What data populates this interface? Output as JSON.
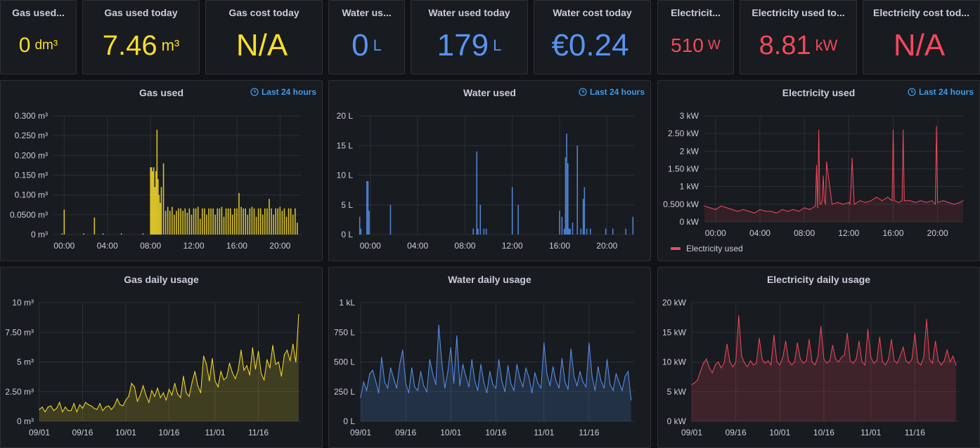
{
  "colors": {
    "gas": "#fade2a",
    "water": "#5794f2",
    "electricity": "#f2495c",
    "link": "#3d9be9"
  },
  "stats": [
    {
      "title": "Gas used...",
      "value": "0",
      "unit": "dm³",
      "color": "#fade2a"
    },
    {
      "title": "Gas used today",
      "value": "7.46",
      "unit": "m³",
      "color": "#fade2a"
    },
    {
      "title": "Gas cost today",
      "value": "N/A",
      "unit": "",
      "color": "#fade2a"
    },
    {
      "title": "Water us...",
      "value": "0",
      "unit": "L",
      "color": "#5794f2"
    },
    {
      "title": "Water used today",
      "value": "179",
      "unit": "L",
      "color": "#5794f2"
    },
    {
      "title": "Water cost today",
      "value": "€0.24",
      "unit": "",
      "color": "#5794f2"
    },
    {
      "title": "Electricit...",
      "value": "510",
      "unit": "W",
      "color": "#f2495c"
    },
    {
      "title": "Electricity used to...",
      "value": "8.81",
      "unit": "kW",
      "color": "#f2495c"
    },
    {
      "title": "Electricity cost tod...",
      "value": "N/A",
      "unit": "",
      "color": "#f2495c"
    }
  ],
  "time_range_label": "Last 24 hours",
  "chart_data": [
    {
      "type": "bar",
      "title": "Gas used",
      "color": "#fade2a",
      "y_ticks": [
        "0 m³",
        "0.0500 m³",
        "0.100 m³",
        "0.150 m³",
        "0.200 m³",
        "0.250 m³",
        "0.300 m³"
      ],
      "ylim": [
        0,
        0.3
      ],
      "x_ticks": [
        "00:00",
        "04:00",
        "08:00",
        "12:00",
        "16:00",
        "20:00"
      ],
      "xlim_hours": [
        -1.0,
        22.0
      ],
      "x_tick_hours": [
        0,
        4,
        8,
        12,
        16,
        20
      ],
      "x": [
        -0.2,
        0.0,
        1.8,
        2.8,
        3.6,
        5.3,
        7.3,
        8.0,
        8.1,
        8.2,
        8.3,
        8.4,
        8.5,
        8.6,
        8.7,
        8.8,
        8.9,
        9.0,
        9.2,
        9.4,
        9.6,
        9.8,
        10.0,
        10.2,
        10.4,
        10.6,
        10.8,
        11.0,
        11.2,
        11.4,
        11.6,
        11.8,
        12.0,
        12.2,
        12.4,
        12.6,
        12.8,
        13.0,
        13.2,
        13.4,
        13.6,
        13.8,
        14.0,
        14.2,
        14.4,
        14.6,
        14.8,
        15.0,
        15.2,
        15.4,
        15.6,
        15.8,
        16.0,
        16.2,
        16.4,
        16.6,
        16.8,
        17.0,
        17.2,
        17.4,
        17.6,
        17.8,
        18.0,
        18.2,
        18.4,
        18.6,
        18.8,
        19.0,
        19.2,
        19.4,
        19.6,
        19.8,
        20.0,
        20.2,
        20.4,
        20.6,
        20.8,
        21.0,
        21.2,
        21.4,
        21.6
      ],
      "values": [
        0.003,
        0.063,
        0.003,
        0.043,
        0.003,
        0.003,
        0.003,
        0.17,
        0.17,
        0.16,
        0.17,
        0.12,
        0.16,
        0.265,
        0.14,
        0.1,
        0.08,
        0.12,
        0.18,
        0.06,
        0.07,
        0.06,
        0.07,
        0.05,
        0.06,
        0.066,
        0.066,
        0.06,
        0.066,
        0.055,
        0.066,
        0.05,
        0.066,
        0.066,
        0.07,
        0.04,
        0.066,
        0.066,
        0.05,
        0.066,
        0.066,
        0.066,
        0.05,
        0.066,
        0.066,
        0.07,
        0.045,
        0.066,
        0.066,
        0.066,
        0.05,
        0.066,
        0.066,
        0.105,
        0.07,
        0.066,
        0.066,
        0.05,
        0.066,
        0.07,
        0.066,
        0.045,
        0.066,
        0.066,
        0.05,
        0.066,
        0.066,
        0.09,
        0.066,
        0.05,
        0.066,
        0.066,
        0.07,
        0.06,
        0.066,
        0.045,
        0.066,
        0.066,
        0.05,
        0.066,
        0.03
      ]
    },
    {
      "type": "bar",
      "title": "Water used",
      "color": "#5794f2",
      "y_ticks": [
        "0 L",
        "5 L",
        "10 L",
        "15 L",
        "20 L"
      ],
      "ylim": [
        0,
        20
      ],
      "x_ticks": [
        "00:00",
        "04:00",
        "08:00",
        "12:00",
        "16:00",
        "20:00"
      ],
      "xlim_hours": [
        -1.0,
        22.3
      ],
      "x_tick_hours": [
        0,
        4,
        8,
        12,
        16,
        20
      ],
      "x": [
        -0.9,
        -0.8,
        -0.3,
        -0.2,
        -0.1,
        1.7,
        8.7,
        9.0,
        9.1,
        9.3,
        9.6,
        9.8,
        12.0,
        12.5,
        16.0,
        16.2,
        16.4,
        16.5,
        16.6,
        16.7,
        16.8,
        16.9,
        17.1,
        17.5,
        17.8,
        18.0,
        18.1,
        18.3,
        18.6,
        19.9,
        20.5,
        21.6,
        22.2
      ],
      "values": [
        3,
        1,
        9,
        9,
        4,
        5,
        1,
        14,
        1,
        5,
        1,
        1,
        8,
        5,
        4,
        3,
        1,
        13,
        17,
        12,
        1,
        1,
        2,
        15,
        1,
        6,
        8,
        1,
        1,
        1,
        1,
        1,
        3
      ]
    },
    {
      "type": "line",
      "title": "Electricity used",
      "color": "#f2495c",
      "y_ticks": [
        "0 kW",
        "0.500 kW",
        "1 kW",
        "1.50 kW",
        "2 kW",
        "2.50 kW",
        "3 kW"
      ],
      "ylim": [
        0,
        3
      ],
      "x_ticks": [
        "00:00",
        "04:00",
        "08:00",
        "12:00",
        "16:00",
        "20:00"
      ],
      "xlim_hours": [
        -1.0,
        22.3
      ],
      "x_tick_hours": [
        0,
        4,
        8,
        12,
        16,
        20
      ],
      "legend": "Electricity used",
      "x": [
        -1.0,
        -0.5,
        0.0,
        0.5,
        1.0,
        1.5,
        2.0,
        2.5,
        3.0,
        3.5,
        4.0,
        4.5,
        5.0,
        5.5,
        6.0,
        6.5,
        7.0,
        7.5,
        8.0,
        8.5,
        9.0,
        9.1,
        9.2,
        9.3,
        9.4,
        9.5,
        9.6,
        9.7,
        9.8,
        9.9,
        10.0,
        10.5,
        11.0,
        11.5,
        12.0,
        12.1,
        12.2,
        12.3,
        12.5,
        13.0,
        13.5,
        14.0,
        14.5,
        15.0,
        15.5,
        15.9,
        16.0,
        16.1,
        16.5,
        16.8,
        16.9,
        17.0,
        17.5,
        18.0,
        18.5,
        19.0,
        19.5,
        19.8,
        19.9,
        20.0,
        20.5,
        21.0,
        21.5,
        22.0,
        22.3
      ],
      "values": [
        0.45,
        0.4,
        0.35,
        0.45,
        0.4,
        0.35,
        0.3,
        0.35,
        0.3,
        0.25,
        0.35,
        0.3,
        0.3,
        0.25,
        0.35,
        0.3,
        0.35,
        0.3,
        0.4,
        0.35,
        0.45,
        1.6,
        0.4,
        2.6,
        0.5,
        0.5,
        0.6,
        1.3,
        0.6,
        0.5,
        1.7,
        0.5,
        0.55,
        0.5,
        0.55,
        0.5,
        1.0,
        1.8,
        0.5,
        0.6,
        0.55,
        0.6,
        0.7,
        0.6,
        0.7,
        0.6,
        2.6,
        0.6,
        0.55,
        0.6,
        2.6,
        0.6,
        0.6,
        0.55,
        0.6,
        0.55,
        0.6,
        0.5,
        2.7,
        0.55,
        0.6,
        0.55,
        0.5,
        0.55,
        0.6
      ]
    },
    {
      "type": "area",
      "title": "Gas daily usage",
      "color": "#fade2a",
      "y_ticks": [
        "0 m³",
        "2.50 m³",
        "5 m³",
        "7.50 m³",
        "10 m³"
      ],
      "ylim": [
        0,
        10
      ],
      "x_ticks": [
        "09/01",
        "09/16",
        "10/01",
        "10/16",
        "11/01",
        "11/16"
      ],
      "x_tick_days": [
        1,
        16,
        31,
        46,
        62,
        77
      ],
      "xlim_days": [
        0,
        91
      ],
      "x": [
        0,
        1,
        2,
        3,
        4,
        5,
        6,
        7,
        8,
        9,
        10,
        11,
        12,
        13,
        14,
        15,
        16,
        17,
        18,
        19,
        20,
        21,
        22,
        23,
        24,
        25,
        26,
        27,
        28,
        29,
        30,
        31,
        32,
        33,
        34,
        35,
        36,
        37,
        38,
        39,
        40,
        41,
        42,
        43,
        44,
        45,
        46,
        47,
        48,
        49,
        50,
        51,
        52,
        53,
        54,
        55,
        56,
        57,
        58,
        59,
        60,
        61,
        62,
        63,
        64,
        65,
        66,
        67,
        68,
        69,
        70,
        71,
        72,
        73,
        74,
        75,
        76,
        77,
        78,
        79,
        80,
        81,
        82,
        83,
        84,
        85,
        86,
        87,
        88,
        89,
        90
      ],
      "values": [
        1.0,
        1.2,
        0.8,
        1.2,
        1.3,
        0.9,
        1.1,
        1.6,
        0.8,
        1.2,
        0.9,
        0.9,
        1.5,
        0.8,
        1.4,
        1.1,
        1.6,
        1.4,
        1.3,
        1.1,
        1.0,
        1.5,
        0.9,
        1.2,
        1.3,
        1.0,
        1.3,
        1.9,
        1.4,
        1.3,
        1.8,
        2.1,
        3.2,
        2.9,
        1.7,
        2.2,
        3.0,
        2.2,
        1.6,
        2.6,
        2.1,
        2.8,
        2.0,
        2.4,
        1.8,
        2.7,
        2.2,
        3.2,
        2.3,
        2.0,
        3.8,
        2.4,
        2.1,
        3.3,
        4.2,
        3.0,
        2.4,
        5.5,
        4.8,
        3.4,
        5.3,
        3.4,
        2.9,
        4.2,
        3.5,
        3.7,
        4.9,
        4.1,
        3.6,
        4.3,
        6.0,
        4.3,
        4.7,
        3.9,
        6.2,
        4.4,
        5.9,
        4.0,
        3.5,
        5.2,
        4.5,
        6.4,
        4.8,
        5.0,
        3.8,
        5.6,
        6.0,
        5.1,
        6.5,
        5.0,
        9.0
      ]
    },
    {
      "type": "area",
      "title": "Water daily usage",
      "color": "#5794f2",
      "y_ticks": [
        "0 L",
        "250 L",
        "500 L",
        "750 L",
        "1 kL"
      ],
      "ylim": [
        0,
        1000
      ],
      "x_ticks": [
        "09/01",
        "09/16",
        "10/01",
        "10/16",
        "11/01",
        "11/16"
      ],
      "x_tick_days": [
        1,
        16,
        31,
        46,
        62,
        77
      ],
      "xlim_days": [
        0,
        91
      ],
      "x": [
        0,
        1,
        2,
        3,
        4,
        5,
        6,
        7,
        8,
        9,
        10,
        11,
        12,
        13,
        14,
        15,
        16,
        17,
        18,
        19,
        20,
        21,
        22,
        23,
        24,
        25,
        26,
        27,
        28,
        29,
        30,
        31,
        32,
        33,
        34,
        35,
        36,
        37,
        38,
        39,
        40,
        41,
        42,
        43,
        44,
        45,
        46,
        47,
        48,
        49,
        50,
        51,
        52,
        53,
        54,
        55,
        56,
        57,
        58,
        59,
        60,
        61,
        62,
        63,
        64,
        65,
        66,
        67,
        68,
        69,
        70,
        71,
        72,
        73,
        74,
        75,
        76,
        77,
        78,
        79,
        80,
        81,
        82,
        83,
        84,
        85,
        86,
        87,
        88,
        89,
        90
      ],
      "values": [
        200,
        330,
        260,
        400,
        430,
        340,
        240,
        540,
        330,
        280,
        450,
        360,
        280,
        480,
        600,
        320,
        240,
        450,
        290,
        260,
        420,
        300,
        250,
        520,
        400,
        310,
        810,
        500,
        280,
        420,
        620,
        320,
        720,
        300,
        480,
        380,
        290,
        520,
        340,
        260,
        480,
        330,
        240,
        420,
        310,
        280,
        520,
        340,
        250,
        470,
        320,
        260,
        480,
        360,
        290,
        450,
        370,
        240,
        410,
        320,
        280,
        660,
        400,
        300,
        460,
        340,
        280,
        530,
        330,
        270,
        610,
        380,
        300,
        420,
        330,
        290,
        660,
        380,
        260,
        460,
        340,
        280,
        520,
        310,
        260,
        400,
        330,
        260,
        380,
        420,
        180
      ]
    },
    {
      "type": "area",
      "title": "Electricity daily usage",
      "color": "#f2495c",
      "y_ticks": [
        "0 kW",
        "5 kW",
        "10 kW",
        "15 kW",
        "20 kW"
      ],
      "ylim": [
        0,
        20
      ],
      "x_ticks": [
        "09/01",
        "09/16",
        "10/01",
        "10/16",
        "11/01",
        "11/16"
      ],
      "x_tick_days": [
        1,
        16,
        31,
        46,
        62,
        77
      ],
      "xlim_days": [
        0,
        91
      ],
      "x": [
        0,
        1,
        2,
        3,
        4,
        5,
        6,
        7,
        8,
        9,
        10,
        11,
        12,
        13,
        14,
        15,
        16,
        17,
        18,
        19,
        20,
        21,
        22,
        23,
        24,
        25,
        26,
        27,
        28,
        29,
        30,
        31,
        32,
        33,
        34,
        35,
        36,
        37,
        38,
        39,
        40,
        41,
        42,
        43,
        44,
        45,
        46,
        47,
        48,
        49,
        50,
        51,
        52,
        53,
        54,
        55,
        56,
        57,
        58,
        59,
        60,
        61,
        62,
        63,
        64,
        65,
        66,
        67,
        68,
        69,
        70,
        71,
        72,
        73,
        74,
        75,
        76,
        77,
        78,
        79,
        80,
        81,
        82,
        83,
        84,
        85,
        86,
        87,
        88,
        89,
        90
      ],
      "values": [
        6.2,
        6.5,
        7.0,
        8.5,
        9.8,
        10.5,
        9.0,
        8.2,
        9.5,
        10.0,
        9.0,
        9.8,
        13.0,
        10.0,
        9.2,
        10.0,
        17.8,
        11.0,
        9.8,
        9.2,
        10.2,
        9.5,
        9.8,
        14.0,
        10.5,
        9.8,
        10.2,
        9.5,
        14.5,
        10.0,
        9.5,
        10.8,
        13.5,
        10.2,
        9.5,
        10.0,
        13.2,
        10.5,
        9.8,
        10.2,
        13.8,
        10.0,
        9.5,
        11.0,
        16.0,
        10.5,
        9.8,
        10.2,
        12.8,
        10.5,
        10.0,
        10.8,
        11.2,
        14.8,
        10.2,
        9.8,
        10.5,
        13.5,
        10.0,
        9.5,
        15.5,
        10.8,
        9.8,
        10.2,
        14.2,
        10.0,
        9.5,
        10.5,
        13.8,
        10.2,
        9.8,
        11.0,
        12.5,
        10.2,
        9.8,
        10.5,
        14.8,
        10.0,
        9.5,
        10.8,
        17.2,
        10.5,
        9.8,
        13.5,
        10.2,
        9.5,
        10.2,
        12.0,
        10.0,
        11.0,
        9.5
      ]
    }
  ]
}
